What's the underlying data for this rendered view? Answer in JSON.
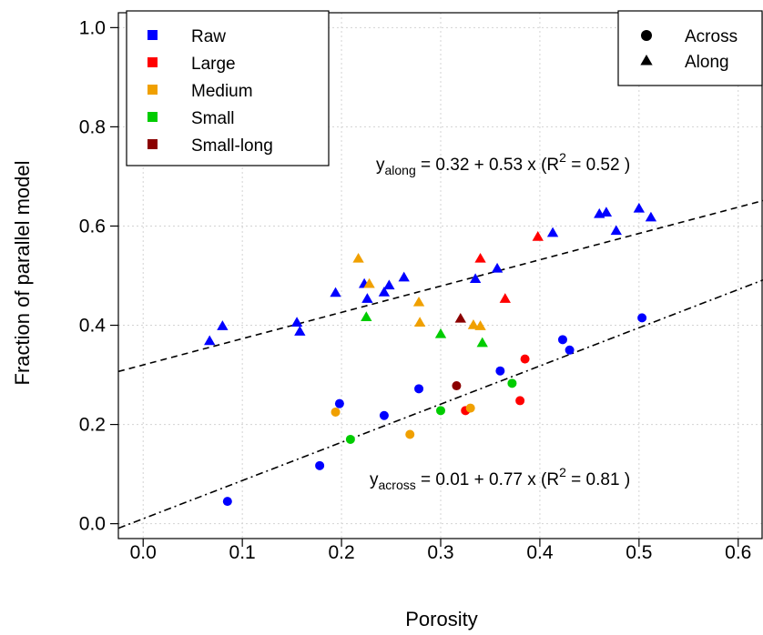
{
  "chart_data": {
    "type": "scatter",
    "xlabel": "Porosity",
    "ylabel": "Fraction of parallel model",
    "xlim": [
      -0.025,
      0.625
    ],
    "ylim": [
      -0.03,
      1.03
    ],
    "xticks": [
      "0.0",
      "0.1",
      "0.2",
      "0.3",
      "0.4",
      "0.5",
      "0.6"
    ],
    "yticks": [
      "0.0",
      "0.2",
      "0.4",
      "0.6",
      "0.8",
      "1.0"
    ],
    "grid": true,
    "colors": {
      "Raw": "#0000ff",
      "Large": "#ff0000",
      "Medium": "#f0a000",
      "Small": "#00cc00",
      "Small-long": "#8b0000"
    },
    "legend_groups": {
      "title_pos": "top-left",
      "entries": [
        "Raw",
        "Large",
        "Medium",
        "Small",
        "Small-long"
      ]
    },
    "legend_direction": {
      "pos": "top-right",
      "entries": [
        {
          "label": "Across",
          "marker": "circle"
        },
        {
          "label": "Along",
          "marker": "triangle"
        }
      ]
    },
    "series": [
      {
        "name": "Raw",
        "direction": "Across",
        "points": [
          [
            0.085,
            0.045
          ],
          [
            0.178,
            0.117
          ],
          [
            0.198,
            0.242
          ],
          [
            0.243,
            0.218
          ],
          [
            0.278,
            0.272
          ],
          [
            0.36,
            0.308
          ],
          [
            0.423,
            0.371
          ],
          [
            0.43,
            0.35
          ],
          [
            0.503,
            0.415
          ]
        ]
      },
      {
        "name": "Raw",
        "direction": "Along",
        "points": [
          [
            0.067,
            0.368
          ],
          [
            0.08,
            0.398
          ],
          [
            0.155,
            0.405
          ],
          [
            0.158,
            0.387
          ],
          [
            0.194,
            0.465
          ],
          [
            0.223,
            0.483
          ],
          [
            0.226,
            0.453
          ],
          [
            0.243,
            0.466
          ],
          [
            0.248,
            0.48
          ],
          [
            0.263,
            0.496
          ],
          [
            0.335,
            0.493
          ],
          [
            0.357,
            0.514
          ],
          [
            0.413,
            0.586
          ],
          [
            0.46,
            0.624
          ],
          [
            0.467,
            0.627
          ],
          [
            0.477,
            0.59
          ],
          [
            0.5,
            0.635
          ],
          [
            0.512,
            0.617
          ]
        ]
      },
      {
        "name": "Large",
        "direction": "Across",
        "points": [
          [
            0.325,
            0.228
          ],
          [
            0.38,
            0.248
          ],
          [
            0.385,
            0.332
          ]
        ]
      },
      {
        "name": "Large",
        "direction": "Along",
        "points": [
          [
            0.34,
            0.534
          ],
          [
            0.365,
            0.453
          ],
          [
            0.398,
            0.578
          ]
        ]
      },
      {
        "name": "Medium",
        "direction": "Across",
        "points": [
          [
            0.194,
            0.225
          ],
          [
            0.269,
            0.18
          ],
          [
            0.33,
            0.233
          ]
        ]
      },
      {
        "name": "Medium",
        "direction": "Along",
        "points": [
          [
            0.217,
            0.534
          ],
          [
            0.228,
            0.483
          ],
          [
            0.278,
            0.446
          ],
          [
            0.279,
            0.405
          ],
          [
            0.333,
            0.4
          ],
          [
            0.34,
            0.398
          ]
        ]
      },
      {
        "name": "Small",
        "direction": "Across",
        "points": [
          [
            0.209,
            0.17
          ],
          [
            0.3,
            0.228
          ],
          [
            0.372,
            0.283
          ]
        ]
      },
      {
        "name": "Small",
        "direction": "Along",
        "points": [
          [
            0.225,
            0.416
          ],
          [
            0.3,
            0.382
          ],
          [
            0.342,
            0.364
          ]
        ]
      },
      {
        "name": "Small-long",
        "direction": "Across",
        "points": [
          [
            0.316,
            0.278
          ]
        ]
      },
      {
        "name": "Small-long",
        "direction": "Along",
        "points": [
          [
            0.32,
            0.413
          ]
        ]
      }
    ],
    "fits": [
      {
        "name": "along",
        "intercept": 0.32,
        "slope": 0.53,
        "style": "dash",
        "label": {
          "y": "y",
          "sub": "along",
          "rest": " =  0.32  + 0.53 x (R",
          "sup": "2",
          "end": " =  0.52 )"
        }
      },
      {
        "name": "across",
        "intercept": 0.01,
        "slope": 0.77,
        "style": "dashdot",
        "label": {
          "y": "y",
          "sub": "across",
          "rest": " =  0.01  + 0.77 x (R",
          "sup": "2",
          "end": " =  0.81 )"
        }
      }
    ]
  }
}
